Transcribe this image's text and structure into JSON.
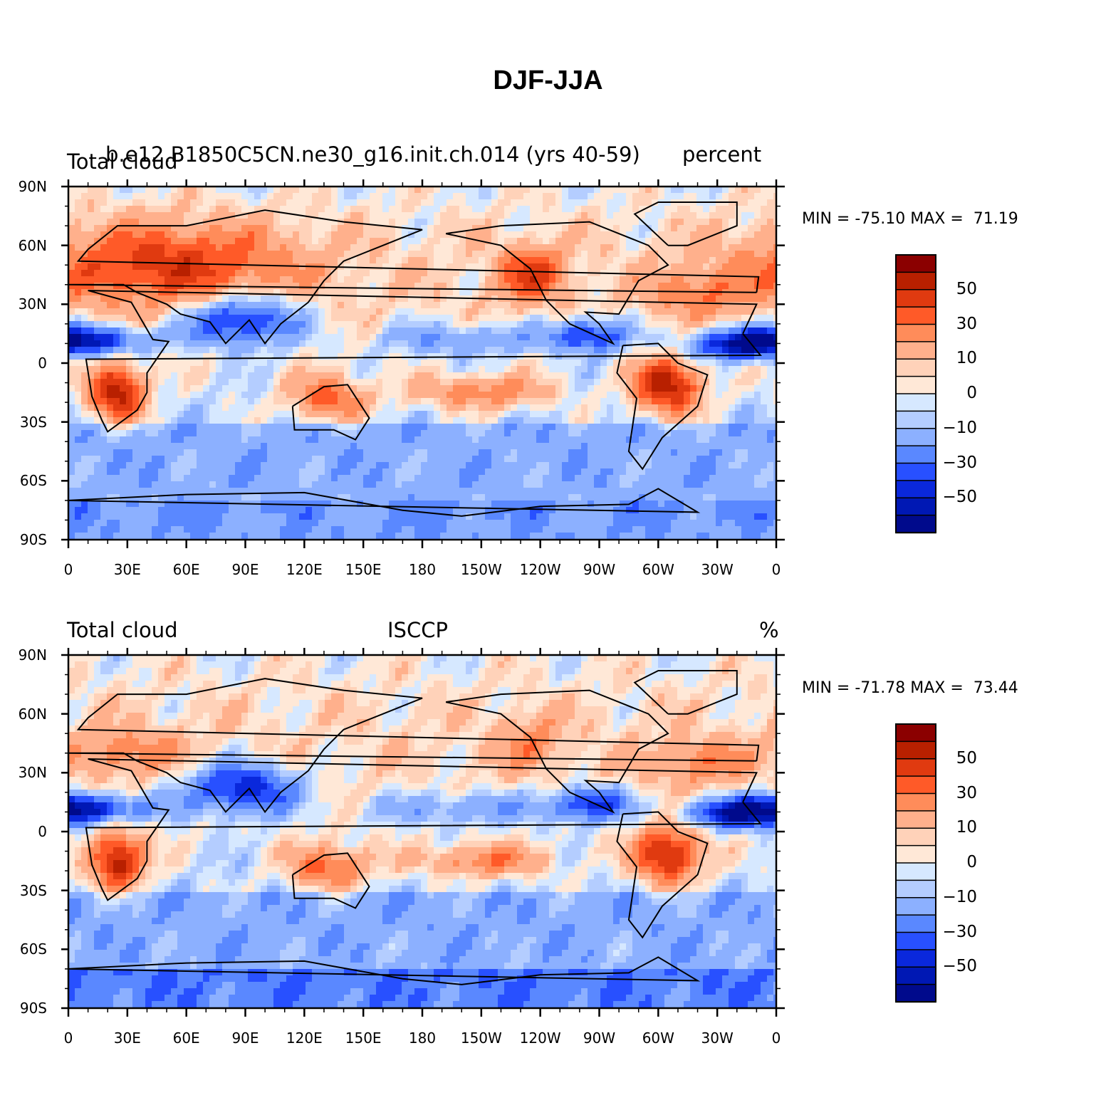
{
  "title": "DJF-JJA",
  "panels": [
    {
      "left_label": "Total cloud",
      "center_label": "b.e12.B1850C5CN.ne30_g16.init.ch.014 (yrs 40-59)",
      "right_label": "percent",
      "minmax_text": "MIN = -75.10 MAX =  71.19",
      "min": -75.1,
      "max": 71.19
    },
    {
      "left_label": "Total cloud",
      "center_label": "ISCCP",
      "right_label": "%",
      "minmax_text": "MIN = -71.78 MAX =  73.44",
      "min": -71.78,
      "max": 73.44
    }
  ],
  "lat_ticks": [
    "90N",
    "60N",
    "30N",
    "0",
    "30S",
    "60S",
    "90S"
  ],
  "lon_ticks": [
    "0",
    "30E",
    "60E",
    "90E",
    "120E",
    "150E",
    "180",
    "150W",
    "120W",
    "90W",
    "60W",
    "30W",
    "0"
  ],
  "colorbar": {
    "labels": [
      "50",
      "30",
      "10",
      "0",
      "−10",
      "−30",
      "−50"
    ],
    "colors": [
      "#8b0000",
      "#b82000",
      "#e03a10",
      "#ff5a28",
      "#ff8c5a",
      "#ffb08c",
      "#ffd2b9",
      "#ffe8d7",
      "#d6e8ff",
      "#b4cdff",
      "#8cb0ff",
      "#5a88ff",
      "#2850ff",
      "#0a28dc",
      "#0018b4",
      "#000a8c"
    ]
  },
  "chart_data": {
    "type": "heatmap",
    "title": "DJF-JJA",
    "variable": "Total cloud",
    "units": "percent",
    "x_ticks": [
      "0",
      "30E",
      "60E",
      "90E",
      "120E",
      "150E",
      "180",
      "150W",
      "120W",
      "90W",
      "60W",
      "30W",
      "0"
    ],
    "y_ticks": [
      "90N",
      "60N",
      "30N",
      "0",
      "30S",
      "60S",
      "90S"
    ],
    "levels": [
      -70,
      -60,
      -50,
      -40,
      -30,
      -20,
      -10,
      -5,
      0,
      5,
      10,
      20,
      30,
      40,
      50,
      60,
      70
    ],
    "panels": [
      {
        "source": "b.e12.B1850C5CN.ne30_g16.init.ch.014 (yrs 40-59)",
        "min": -75.1,
        "max": 71.19
      },
      {
        "source": "ISCCP",
        "min": -71.78,
        "max": 73.44
      }
    ]
  }
}
